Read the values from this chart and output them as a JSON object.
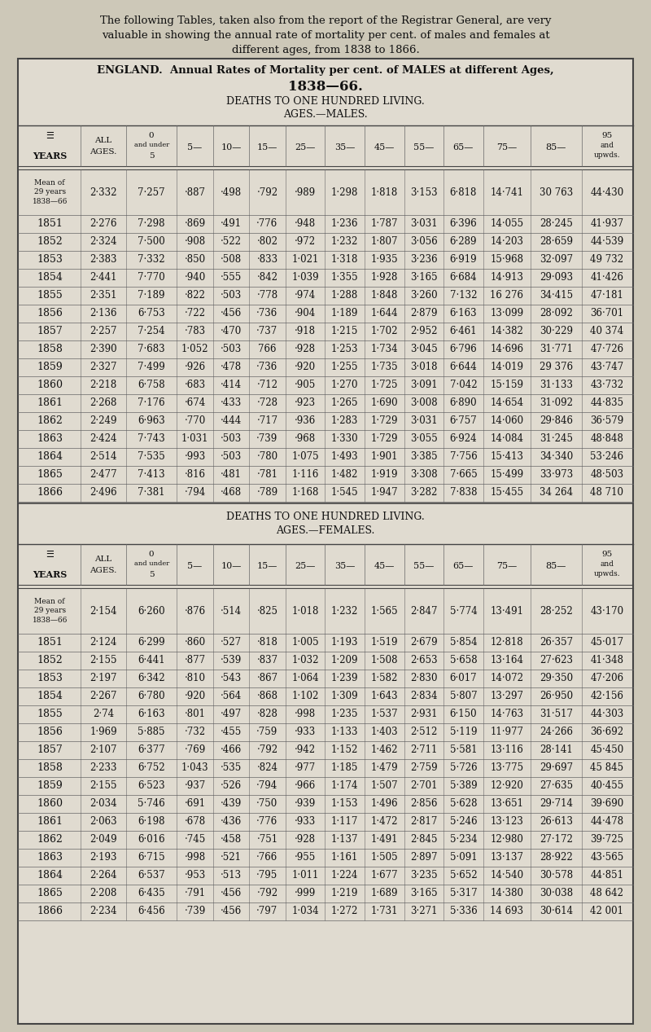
{
  "bg_color": "#cdc8b8",
  "table_bg": "#e0dbd0",
  "intro_lines": [
    "The following Tables, taken also from the report of the Registrar General, are very",
    "valuable in showing the annual rate of mortality per cent. of males and females at",
    "different ages, from 1838 to 1866."
  ],
  "title1a": "ENGLAND.",
  "title1b": "  Annual Rates of Mortality per cent. of MALES at different Ages,",
  "title2": "1838—66.",
  "subtitle_m1": "DEATHS TO ONE HUNDRED LIVING.",
  "subtitle_m2": "AGES.—MALES.",
  "subtitle_f1": "DEATHS TO ONE HUNDRED LIVING.",
  "subtitle_f2": "AGES.—FEMALES.",
  "col_headers_line1": [
    "",
    "ALL",
    "0",
    "",
    "",
    "",
    "",
    "",
    "",
    "",
    "",
    "",
    "",
    "95"
  ],
  "col_headers_line2": [
    "YEARS",
    "AGES.",
    "and under",
    "5—",
    "10—",
    "15—",
    "25—",
    "35—",
    "45—",
    "55—",
    "65—",
    "75—",
    "85—",
    "and"
  ],
  "col_headers_line3": [
    "",
    "",
    "5",
    "",
    "",
    "",
    "",
    "",
    "",
    "",
    "",
    "",
    "",
    "upwds."
  ],
  "males_rows": [
    [
      "Mean of\n29 years\n1838—66",
      "2·332",
      "7·257",
      "·887",
      "·498",
      "·792",
      "·989",
      "1·298",
      "1·818",
      "3·153",
      "6·818",
      "14·741",
      "30 763",
      "44·430"
    ],
    [
      "1851",
      "2·276",
      "7·298",
      "·869",
      "·491",
      "·776",
      "·948",
      "1·236",
      "1·787",
      "3·031",
      "6·396",
      "14·055",
      "28·245",
      "41·937"
    ],
    [
      "1852",
      "2·324",
      "7·500",
      "·908",
      "·522",
      "·802",
      "·972",
      "1·232",
      "1·807",
      "3·056",
      "6·289",
      "14·203",
      "28·659",
      "44·539"
    ],
    [
      "1853",
      "2·383",
      "7·332",
      "·850",
      "·508",
      "·833",
      "1·021",
      "1·318",
      "1·935",
      "3·236",
      "6·919",
      "15·968",
      "32·097",
      "49 732"
    ],
    [
      "1854",
      "2·441",
      "7·770",
      "·940",
      "·555",
      "·842",
      "1·039",
      "1·355",
      "1·928",
      "3·165",
      "6·684",
      "14·913",
      "29·093",
      "41·426"
    ],
    [
      "1855",
      "2·351",
      "7·189",
      "·822",
      "·503",
      "·778",
      "·974",
      "1·288",
      "1·848",
      "3·260",
      "7·132",
      "16 276",
      "34·415",
      "47·181"
    ],
    [
      "1856",
      "2·136",
      "6·753",
      "·722",
      "·456",
      "·736",
      "·904",
      "1·189",
      "1·644",
      "2·879",
      "6·163",
      "13·099",
      "28·092",
      "36·701"
    ],
    [
      "1857",
      "2·257",
      "7·254",
      "·783",
      "·470",
      "·737",
      "·918",
      "1·215",
      "1·702",
      "2·952",
      "6·461",
      "14·382",
      "30·229",
      "40 374"
    ],
    [
      "1858",
      "2·390",
      "7·683",
      "1·052",
      "·503",
      "766",
      "·928",
      "1·253",
      "1·734",
      "3·045",
      "6·796",
      "14·696",
      "31·771",
      "47·726"
    ],
    [
      "1859",
      "2·327",
      "7·499",
      "·926",
      "·478",
      "·736",
      "·920",
      "1·255",
      "1·735",
      "3·018",
      "6·644",
      "14·019",
      "29 376",
      "43·747"
    ],
    [
      "1860",
      "2·218",
      "6·758",
      "·683",
      "·414",
      "·712",
      "·905",
      "1·270",
      "1·725",
      "3·091",
      "7·042",
      "15·159",
      "31·133",
      "43·732"
    ],
    [
      "1861",
      "2·268",
      "7·176",
      "·674",
      "·433",
      "·728",
      "·923",
      "1·265",
      "1·690",
      "3·008",
      "6·890",
      "14·654",
      "31·092",
      "44·835"
    ],
    [
      "1862",
      "2·249",
      "6·963",
      "·770",
      "·444",
      "·717",
      "·936",
      "1·283",
      "1·729",
      "3·031",
      "6·757",
      "14·060",
      "29·846",
      "36·579"
    ],
    [
      "1863",
      "2·424",
      "7·743",
      "1·031",
      "·503",
      "·739",
      "·968",
      "1·330",
      "1·729",
      "3·055",
      "6·924",
      "14·084",
      "31·245",
      "48·848"
    ],
    [
      "1864",
      "2·514",
      "7·535",
      "·993",
      "·503",
      "·780",
      "1·075",
      "1·493",
      "1·901",
      "3·385",
      "7·756",
      "15·413",
      "34·340",
      "53·246"
    ],
    [
      "1865",
      "2·477",
      "7·413",
      "·816",
      "·481",
      "·781",
      "1·116",
      "1·482",
      "1·919",
      "3·308",
      "7·665",
      "15·499",
      "33·973",
      "48·503"
    ],
    [
      "1866",
      "2·496",
      "7·381",
      "·794",
      "·468",
      "·789",
      "1·168",
      "1·545",
      "1·947",
      "3·282",
      "7·838",
      "15·455",
      "34 264",
      "48 710"
    ]
  ],
  "females_rows": [
    [
      "Mean of\n29 years\n1838—66",
      "2·154",
      "6·260",
      "·876",
      "·514",
      "·825",
      "1·018",
      "1·232",
      "1·565",
      "2·847",
      "5·774",
      "13·491",
      "28·252",
      "43·170"
    ],
    [
      "1851",
      "2·124",
      "6·299",
      "·860",
      "·527",
      "·818",
      "1·005",
      "1·193",
      "1·519",
      "2·679",
      "5·854",
      "12·818",
      "26·357",
      "45·017"
    ],
    [
      "1852",
      "2·155",
      "6·441",
      "·877",
      "·539",
      "·837",
      "1·032",
      "1·209",
      "1·508",
      "2·653",
      "5·658",
      "13·164",
      "27·623",
      "41·348"
    ],
    [
      "1853",
      "2·197",
      "6·342",
      "·810",
      "·543",
      "·867",
      "1·064",
      "1·239",
      "1·582",
      "2·830",
      "6·017",
      "14·072",
      "29·350",
      "47·206"
    ],
    [
      "1854",
      "2·267",
      "6·780",
      "·920",
      "·564",
      "·868",
      "1·102",
      "1·309",
      "1·643",
      "2·834",
      "5·807",
      "13·297",
      "26·950",
      "42·156"
    ],
    [
      "1855",
      "2·74",
      "6·163",
      "·801",
      "·497",
      "·828",
      "·998",
      "1·235",
      "1·537",
      "2·931",
      "6·150",
      "14·763",
      "31·517",
      "44·303"
    ],
    [
      "1856",
      "1·969",
      "5·885",
      "·732",
      "·455",
      "·759",
      "·933",
      "1·133",
      "1·403",
      "2·512",
      "5·119",
      "11·977",
      "24·266",
      "36·692"
    ],
    [
      "1857",
      "2·107",
      "6·377",
      "·769",
      "·466",
      "·792",
      "·942",
      "1·152",
      "1·462",
      "2·711",
      "5·581",
      "13·116",
      "28·141",
      "45·450"
    ],
    [
      "1858",
      "2·233",
      "6·752",
      "1·043",
      "·535",
      "·824",
      "·977",
      "1·185",
      "1·479",
      "2·759",
      "5·726",
      "13·775",
      "29·697",
      "45 845"
    ],
    [
      "1859",
      "2·155",
      "6·523",
      "·937",
      "·526",
      "·794",
      "·966",
      "1·174",
      "1·507",
      "2·701",
      "5·389",
      "12·920",
      "27·635",
      "40·455"
    ],
    [
      "1860",
      "2·034",
      "5·746",
      "·691",
      "·439",
      "·750",
      "·939",
      "1·153",
      "1·496",
      "2·856",
      "5·628",
      "13·651",
      "29·714",
      "39·690"
    ],
    [
      "1861",
      "2·063",
      "6·198",
      "·678",
      "·436",
      "·776",
      "·933",
      "1·117",
      "1·472",
      "2·817",
      "5·246",
      "13·123",
      "26·613",
      "44·478"
    ],
    [
      "1862",
      "2·049",
      "6·016",
      "·745",
      "·458",
      "·751",
      "·928",
      "1·137",
      "1·491",
      "2·845",
      "5·234",
      "12·980",
      "27·172",
      "39·725"
    ],
    [
      "1863",
      "2·193",
      "6·715",
      "·998",
      "·521",
      "·766",
      "·955",
      "1·161",
      "1·505",
      "2·897",
      "5·091",
      "13·137",
      "28·922",
      "43·565"
    ],
    [
      "1864",
      "2·264",
      "6·537",
      "·953",
      "·513",
      "·795",
      "1·011",
      "1·224",
      "1·677",
      "3·235",
      "5·652",
      "14·540",
      "30·578",
      "44·851"
    ],
    [
      "1865",
      "2·208",
      "6·435",
      "·791",
      "·456",
      "·792",
      "·999",
      "1·219",
      "1·689",
      "3·165",
      "5·317",
      "14·380",
      "30·038",
      "48 642"
    ],
    [
      "1866",
      "2·234",
      "6·456",
      "·739",
      "·456",
      "·797",
      "1·034",
      "1·272",
      "1·731",
      "3·271",
      "5·336",
      "14 693",
      "30·614",
      "42 001"
    ]
  ]
}
